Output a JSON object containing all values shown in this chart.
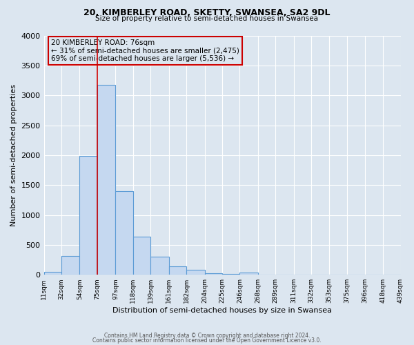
{
  "title": "20, KIMBERLEY ROAD, SKETTY, SWANSEA, SA2 9DL",
  "subtitle": "Size of property relative to semi-detached houses in Swansea",
  "xlabel": "Distribution of semi-detached houses by size in Swansea",
  "ylabel": "Number of semi-detached properties",
  "bar_color": "#c5d8f0",
  "bar_edge_color": "#5b9bd5",
  "background_color": "#dce6f0",
  "grid_color": "#ffffff",
  "annotation_box_color": "#cc0000",
  "vline_color": "#cc0000",
  "vline_x": 75,
  "annotation_title": "20 KIMBERLEY ROAD: 76sqm",
  "annotation_line1": "← 31% of semi-detached houses are smaller (2,475)",
  "annotation_line2": "69% of semi-detached houses are larger (5,536) →",
  "bin_edges": [
    11,
    32,
    54,
    75,
    97,
    118,
    139,
    161,
    182,
    204,
    225,
    246,
    268,
    289,
    311,
    332,
    353,
    375,
    396,
    418,
    439
  ],
  "bin_counts": [
    50,
    310,
    1990,
    3170,
    1400,
    640,
    300,
    140,
    80,
    30,
    10,
    35,
    5,
    0,
    0,
    0,
    0,
    0,
    0,
    0
  ],
  "ylim": [
    0,
    4000
  ],
  "yticks": [
    0,
    500,
    1000,
    1500,
    2000,
    2500,
    3000,
    3500,
    4000
  ],
  "footer1": "Contains HM Land Registry data © Crown copyright and database right 2024.",
  "footer2": "Contains public sector information licensed under the Open Government Licence v3.0."
}
